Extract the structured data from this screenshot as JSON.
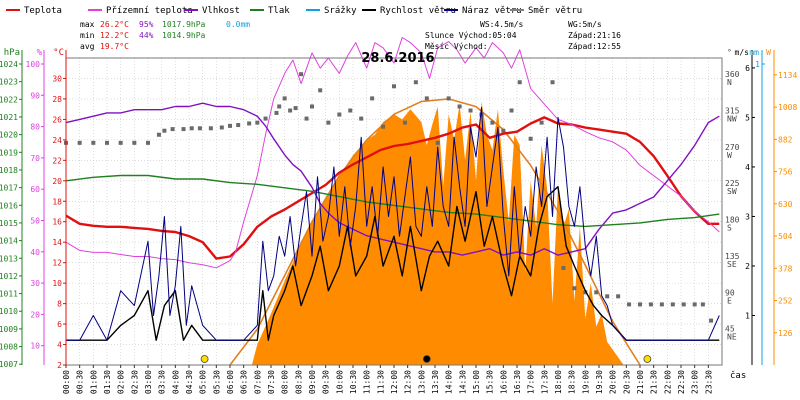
{
  "legend": [
    {
      "label": "Teplota",
      "color": "#e01010"
    },
    {
      "label": "Přízemní teplota",
      "color": "#e040e0"
    },
    {
      "label": "Vlhkost",
      "color": "#8010c0"
    },
    {
      "label": "Tlak",
      "color": "#208020"
    },
    {
      "label": "Srážky",
      "color": "#10a0e0"
    },
    {
      "label": "Rychlost větru",
      "color": "#000000"
    },
    {
      "label": "Náraz větru",
      "color": "#000080"
    },
    {
      "label": "Směr větru",
      "color": "#808080"
    }
  ],
  "stats": {
    "max_label": "max",
    "max_temp": "26.2°C",
    "max_hum": "95%",
    "max_press": "1017.9hPa",
    "rain": "0.0mm",
    "min_label": "min",
    "min_temp": "12.2°C",
    "min_hum": "44%",
    "min_press": "1014.9hPa",
    "avg_label": "avg",
    "avg_temp": "19.7°C",
    "ws": "WS:4.5m/s",
    "wg": "WG:5m/s",
    "sun_rise": "Slunce Východ:05:04",
    "sun_set": "Západ:21:16",
    "moon_rise": "Měsíc  Východ:",
    "moon_set": "Západ:12:55"
  },
  "chart_data": {
    "type": "line",
    "title": "28.6.2016",
    "x_unit_label": "čas",
    "axes": {
      "hpa": {
        "label": "hPa",
        "ticks": [
          "1024",
          "1023",
          "1022",
          "1021",
          "1020",
          "1019",
          "1018",
          "1017",
          "1016",
          "1015",
          "1014",
          "1013",
          "1012",
          "1011",
          "1010",
          "1009",
          "1008",
          "1007"
        ]
      },
      "pct": {
        "label": "%",
        "ticks": [
          "100",
          "90",
          "80",
          "70",
          "60",
          "50",
          "40",
          "30",
          "20",
          "10"
        ]
      },
      "celsius": {
        "label": "°C",
        "ticks": [
          "30",
          "28",
          "26",
          "24",
          "22",
          "20",
          "18",
          "16",
          "14",
          "12",
          "10",
          "8",
          "6",
          "4",
          "2"
        ]
      },
      "direction": {
        "label": "°",
        "ticks": [
          "360 N",
          "315 NW",
          "270 W",
          "225 SW",
          "180 S",
          "135 SE",
          "90 E",
          "45 NE"
        ]
      },
      "wind": {
        "label": "m/s",
        "ticks": [
          "6",
          "5",
          "4",
          "3",
          "2",
          "1"
        ]
      },
      "rain": {
        "label": "mm",
        "ticks": [
          "1"
        ]
      },
      "solar": {
        "label": "W",
        "ticks": [
          "1134",
          "1008",
          "882",
          "756",
          "630",
          "504",
          "378",
          "252",
          "126"
        ]
      }
    },
    "x_ticks": [
      "00:00",
      "00:30",
      "01:00",
      "01:30",
      "02:00",
      "02:30",
      "03:00",
      "03:30",
      "04:00",
      "04:30",
      "05:00",
      "05:30",
      "06:00",
      "06:30",
      "07:00",
      "07:30",
      "08:00",
      "08:30",
      "09:00",
      "09:30",
      "10:00",
      "10:30",
      "11:00",
      "11:30",
      "12:00",
      "12:30",
      "13:00",
      "13:30",
      "14:00",
      "14:30",
      "15:00",
      "15:30",
      "16:00",
      "16:30",
      "17:00",
      "17:30",
      "18:00",
      "18:30",
      "19:00",
      "19:30",
      "20:00",
      "20:30",
      "21:00",
      "21:30",
      "22:00",
      "22:30",
      "23:00",
      "23:30"
    ],
    "ranges": {
      "temp": [
        2,
        32
      ],
      "humidity": [
        10,
        105
      ],
      "pressure": [
        1007,
        1024.5
      ],
      "wind": [
        0,
        6.2
      ],
      "direction": [
        0,
        380
      ],
      "solar": [
        0,
        1200
      ]
    },
    "series": [
      {
        "name": "Teplota",
        "color": "#e01010",
        "width": 2.4,
        "axis": "temp",
        "hours": [
          0,
          0.5,
          1,
          1.5,
          2,
          2.5,
          3,
          3.5,
          4,
          4.5,
          5,
          5.5,
          6,
          6.5,
          7,
          7.5,
          8,
          8.5,
          9,
          9.5,
          10,
          10.5,
          11,
          11.5,
          12,
          12.5,
          13,
          13.5,
          14,
          14.5,
          15,
          15.5,
          16,
          16.5,
          17,
          17.5,
          18,
          18.5,
          19,
          19.5,
          20,
          20.5,
          21,
          21.5,
          22,
          22.5,
          23,
          23.5,
          23.9
        ],
        "values": [
          16.6,
          15.8,
          15.6,
          15.5,
          15.5,
          15.4,
          15.3,
          15.1,
          15.0,
          14.6,
          14.0,
          12.4,
          12.6,
          13.8,
          15.5,
          16.5,
          17.2,
          18.0,
          18.8,
          19.6,
          20.8,
          21.6,
          22.3,
          23.0,
          23.4,
          23.6,
          23.9,
          24.2,
          24.6,
          25.2,
          25.5,
          24.2,
          24.6,
          24.8,
          25.6,
          26.2,
          25.6,
          25.5,
          25.2,
          25.0,
          24.8,
          24.6,
          23.8,
          22.4,
          20.5,
          18.5,
          17.0,
          15.8,
          15.8
        ]
      },
      {
        "name": "Přízemní teplota",
        "color": "#e040e0",
        "width": 1,
        "axis": "temp",
        "hours": [
          0,
          0.5,
          1,
          1.5,
          2,
          2.5,
          3,
          3.5,
          4,
          4.5,
          5,
          5.5,
          6,
          6.2,
          6.5,
          7,
          7.3,
          7.6,
          8,
          8.3,
          8.6,
          9,
          9.3,
          9.6,
          10,
          10.3,
          10.6,
          11,
          11.3,
          11.6,
          12,
          12.3,
          12.6,
          13,
          13.3,
          13.6,
          14,
          14.3,
          14.6,
          15,
          15.3,
          15.6,
          16,
          16.3,
          16.6,
          17,
          17.5,
          18,
          18.5,
          19,
          19.5,
          20,
          20.5,
          21,
          21.5,
          22,
          22.5,
          23,
          23.5,
          23.9
        ],
        "values": [
          14.0,
          13.2,
          13.0,
          13.0,
          12.8,
          12.6,
          12.6,
          12.4,
          12.3,
          12.0,
          11.8,
          11.5,
          12.2,
          13.0,
          16.0,
          20.5,
          24.5,
          28.0,
          30.5,
          31.8,
          29.5,
          32.5,
          31.0,
          32.0,
          30.5,
          32.2,
          33.5,
          31.0,
          33.5,
          33.0,
          31.5,
          34.0,
          33.5,
          32.5,
          30.0,
          33.0,
          33.6,
          32.8,
          31.5,
          33.0,
          32.0,
          33.5,
          32.5,
          31.0,
          32.8,
          29.0,
          27.5,
          26.0,
          25.5,
          24.8,
          24.2,
          23.8,
          23.0,
          21.5,
          20.5,
          19.5,
          18.5,
          17.0,
          16.0,
          15.0
        ]
      },
      {
        "name": "Vlhkost",
        "color": "#8010c0",
        "width": 1.4,
        "axis": "humidity",
        "hours": [
          0,
          0.5,
          1,
          1.5,
          2,
          2.5,
          3,
          3.5,
          4,
          4.5,
          5,
          5.5,
          6,
          6.5,
          7,
          7.3,
          7.6,
          8,
          8.3,
          8.6,
          9,
          9.3,
          9.6,
          10,
          10.5,
          11,
          11.5,
          12,
          12.5,
          13,
          13.5,
          14,
          14.5,
          15,
          15.5,
          16,
          16.5,
          17,
          17.5,
          18,
          18.5,
          19,
          19.5,
          20,
          20.5,
          21,
          21.5,
          22,
          22.5,
          23,
          23.5,
          23.9
        ],
        "values": [
          85,
          86,
          87,
          88,
          88,
          89,
          89,
          89,
          90,
          90,
          91,
          90,
          90,
          89,
          87,
          84,
          80,
          75,
          72,
          70,
          65,
          60,
          57,
          54,
          52,
          50,
          49,
          48,
          47,
          46,
          45,
          45,
          44,
          45,
          46,
          44,
          45,
          44,
          46,
          44,
          45,
          46,
          52,
          57,
          58,
          60,
          62,
          67,
          72,
          78,
          85,
          87
        ]
      },
      {
        "name": "Tlak",
        "color": "#208020",
        "width": 1.4,
        "axis": "pressure",
        "hours": [
          0,
          1,
          2,
          3,
          4,
          5,
          6,
          7,
          8,
          9,
          10,
          11,
          12,
          13,
          14,
          15,
          16,
          17,
          18,
          19,
          20,
          21,
          22,
          23,
          23.9
        ],
        "values": [
          1017.5,
          1017.7,
          1017.8,
          1017.8,
          1017.6,
          1017.6,
          1017.4,
          1017.3,
          1017.1,
          1016.9,
          1016.6,
          1016.3,
          1016.1,
          1015.9,
          1015.7,
          1015.6,
          1015.4,
          1015.2,
          1015.0,
          1014.9,
          1015.0,
          1015.1,
          1015.3,
          1015.4,
          1015.6
        ]
      },
      {
        "name": "Rychlost větru",
        "color": "#000000",
        "width": 1.4,
        "axis": "wind",
        "hours": [
          0,
          0.5,
          1,
          1.5,
          2,
          2.5,
          3,
          3.3,
          3.6,
          4,
          4.3,
          4.6,
          5,
          5.5,
          6,
          6.5,
          7,
          7.2,
          7.4,
          7.6,
          8,
          8.3,
          8.6,
          9,
          9.3,
          9.6,
          10,
          10.3,
          10.6,
          11,
          11.3,
          11.6,
          12,
          12.3,
          12.6,
          13,
          13.3,
          13.6,
          14,
          14.3,
          14.6,
          15,
          15.3,
          15.6,
          16,
          16.3,
          16.6,
          17,
          17.3,
          17.6,
          18,
          18.3,
          18.6,
          19,
          19.3,
          19.6,
          20,
          20.5,
          21,
          21.5,
          22,
          22.5,
          23,
          23.5,
          23.9
        ],
        "values": [
          0.5,
          0.5,
          0.5,
          0.5,
          0.8,
          1.0,
          1.5,
          0.5,
          1.2,
          1.5,
          0.5,
          0.8,
          0.5,
          0.5,
          0.5,
          0.5,
          0.5,
          1.5,
          0.5,
          1.0,
          1.5,
          2.0,
          1.2,
          1.8,
          2.4,
          1.5,
          2.0,
          2.8,
          1.8,
          2.2,
          3.0,
          2.0,
          2.6,
          1.8,
          2.8,
          1.5,
          2.2,
          2.5,
          2.0,
          3.2,
          2.5,
          3.5,
          2.4,
          3.0,
          2.0,
          1.4,
          2.2,
          1.8,
          2.8,
          3.4,
          3.6,
          2.4,
          2.0,
          1.5,
          1.2,
          1.0,
          0.8,
          0.5,
          0.5,
          0.5,
          0.5,
          0.5,
          0.5,
          0.5,
          0.5
        ]
      },
      {
        "name": "Náraz větru",
        "color": "#000080",
        "width": 1,
        "axis": "wind",
        "hours": [
          0,
          0.5,
          1,
          1.5,
          2,
          2.5,
          3,
          3.2,
          3.4,
          3.6,
          3.8,
          4,
          4.2,
          4.4,
          4.6,
          5,
          5.5,
          6,
          6.5,
          7,
          7.2,
          7.4,
          7.6,
          7.8,
          8,
          8.2,
          8.4,
          8.6,
          8.8,
          9,
          9.2,
          9.4,
          9.6,
          9.8,
          10,
          10.2,
          10.4,
          10.6,
          10.8,
          11,
          11.2,
          11.4,
          11.6,
          11.8,
          12,
          12.2,
          12.4,
          12.6,
          12.8,
          13,
          13.2,
          13.4,
          13.6,
          13.8,
          14,
          14.2,
          14.4,
          14.6,
          14.8,
          15,
          15.2,
          15.4,
          15.6,
          15.8,
          16,
          16.2,
          16.4,
          16.6,
          16.8,
          17,
          17.2,
          17.4,
          17.6,
          17.8,
          18,
          18.2,
          18.4,
          18.6,
          18.8,
          19,
          19.2,
          19.4,
          19.6,
          19.8,
          20,
          20.5,
          21,
          21.5,
          22,
          22.5,
          23,
          23.5,
          23.9
        ],
        "values": [
          0.5,
          0.5,
          1.0,
          0.5,
          1.5,
          1.2,
          2.5,
          1.0,
          1.8,
          3.0,
          1.0,
          1.6,
          2.8,
          0.8,
          1.6,
          0.8,
          0.5,
          0.5,
          0.5,
          0.8,
          2.5,
          1.5,
          1.8,
          2.6,
          2.2,
          3.0,
          2.0,
          2.8,
          3.5,
          2.2,
          3.8,
          2.5,
          3.0,
          4.0,
          2.6,
          3.6,
          2.4,
          3.2,
          4.6,
          2.8,
          3.6,
          2.6,
          4.0,
          3.0,
          3.8,
          2.6,
          3.4,
          4.2,
          2.8,
          2.6,
          3.6,
          2.8,
          4.4,
          3.2,
          2.8,
          4.6,
          3.6,
          2.8,
          4.8,
          4.2,
          5.2,
          3.2,
          4.0,
          4.8,
          3.0,
          1.8,
          3.6,
          2.2,
          3.2,
          2.6,
          4.0,
          3.2,
          4.6,
          3.0,
          5.0,
          4.4,
          3.2,
          2.8,
          3.6,
          2.4,
          1.8,
          2.6,
          1.4,
          1.2,
          0.8,
          0.5,
          0.5,
          0.5,
          0.5,
          0.5,
          0.5,
          0.5,
          1.0
        ]
      }
    ],
    "direction_points": {
      "color": "#6a6a6a",
      "axis": "direction",
      "hours": [
        0.0,
        0.5,
        1.0,
        1.5,
        2.0,
        2.5,
        3.0,
        3.4,
        3.6,
        3.9,
        4.3,
        4.6,
        4.9,
        5.3,
        5.7,
        6.0,
        6.3,
        6.7,
        7.0,
        7.3,
        7.7,
        7.8,
        8.0,
        8.2,
        8.4,
        8.6,
        8.8,
        9.0,
        9.3,
        9.6,
        10.0,
        10.4,
        10.8,
        11.2,
        11.6,
        12.0,
        12.4,
        12.8,
        13.2,
        13.6,
        14.0,
        14.4,
        14.8,
        15.2,
        15.6,
        16.0,
        16.3,
        16.6,
        17.0,
        17.4,
        17.8,
        18.2,
        18.6,
        19.0,
        19.4,
        19.8,
        20.2,
        20.6,
        21.0,
        21.4,
        21.8,
        22.2,
        22.6,
        23.0,
        23.3,
        23.6
      ],
      "values": [
        275,
        275,
        275,
        275,
        275,
        275,
        275,
        285,
        290,
        292,
        292,
        293,
        293,
        293,
        294,
        296,
        297,
        299,
        300,
        305,
        312,
        320,
        330,
        315,
        318,
        360,
        305,
        320,
        340,
        300,
        310,
        315,
        305,
        330,
        295,
        345,
        300,
        350,
        330,
        275,
        330,
        320,
        315,
        310,
        300,
        290,
        315,
        350,
        280,
        300,
        350,
        120,
        95,
        90,
        90,
        85,
        85,
        75,
        75,
        75,
        75,
        75,
        75,
        75,
        75,
        55
      ]
    },
    "solar": {
      "color": "#ff8c00",
      "axis": "solar",
      "hours": [
        6.8,
        7.0,
        7.5,
        8.0,
        8.5,
        9.0,
        9.5,
        10.0,
        10.5,
        11.0,
        11.3,
        11.6,
        12.0,
        12.3,
        12.6,
        13.0,
        13.2,
        13.4,
        13.6,
        13.8,
        14.0,
        14.2,
        14.4,
        14.6,
        14.8,
        15.0,
        15.2,
        15.4,
        15.6,
        15.8,
        16.0,
        16.2,
        16.4,
        16.6,
        16.8,
        17.0,
        17.2,
        17.4,
        17.6,
        17.8,
        18.0,
        18.2,
        18.4,
        18.6,
        18.8,
        19.0,
        19.2,
        19.4,
        19.6,
        19.8,
        20.0,
        20.2,
        20.4
      ],
      "values": [
        0,
        80,
        200,
        330,
        450,
        560,
        650,
        740,
        820,
        880,
        900,
        950,
        980,
        960,
        1000,
        950,
        860,
        940,
        1010,
        700,
        980,
        880,
        1020,
        800,
        990,
        720,
        1030,
        900,
        840,
        1000,
        760,
        560,
        900,
        860,
        360,
        720,
        540,
        860,
        690,
        240,
        700,
        540,
        610,
        250,
        540,
        180,
        320,
        150,
        200,
        90,
        60,
        30,
        0
      ]
    },
    "clear_sky_curve": {
      "color": "#e08020",
      "axis": "solar",
      "hours": [
        6,
        7,
        8,
        9,
        10,
        11,
        12,
        13,
        14,
        15,
        16,
        17,
        18,
        19,
        20,
        21
      ],
      "values": [
        0,
        140,
        350,
        560,
        740,
        880,
        980,
        1030,
        1040,
        1010,
        920,
        780,
        600,
        390,
        170,
        0
      ]
    },
    "markers": [
      {
        "label": "sunrise",
        "hour": 5.07,
        "color": "#ffdd00"
      },
      {
        "label": "sun-peak",
        "hour": 13.2,
        "color": "#000000"
      },
      {
        "label": "sunset",
        "hour": 21.27,
        "color": "#ffdd00"
      }
    ]
  }
}
